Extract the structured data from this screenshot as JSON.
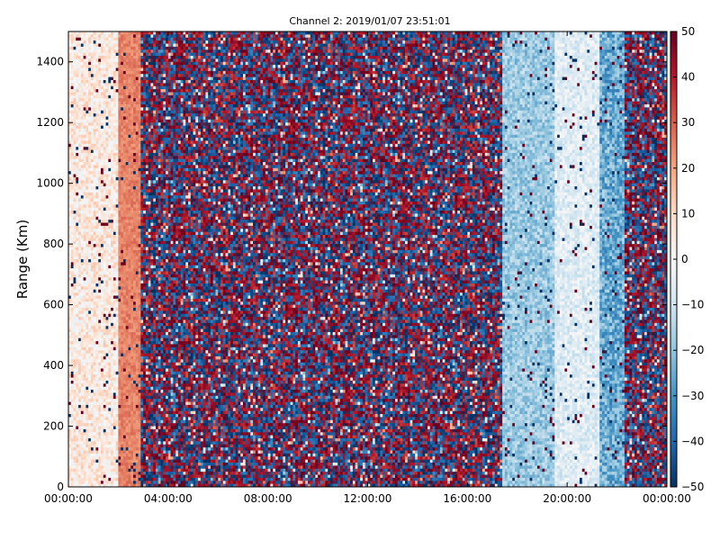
{
  "chart_data": {
    "type": "heatmap",
    "title": "Channel 2: 2019/01/07 23:51:01",
    "xlabel": "",
    "ylabel": "Range (Km)",
    "x_ticks": [
      "00:00:00",
      "04:00:00",
      "08:00:00",
      "12:00:00",
      "16:00:00",
      "20:00:00",
      "00:00:00"
    ],
    "x_range_hours": [
      0,
      24
    ],
    "y_ticks": [
      0,
      200,
      400,
      600,
      800,
      1000,
      1200,
      1400
    ],
    "ylim": [
      0,
      1500
    ],
    "colorbar": {
      "colormap": "RdBu_r",
      "range": [
        -50,
        50
      ],
      "ticks": [
        50,
        40,
        30,
        20,
        10,
        0,
        -10,
        -20,
        -30,
        -40,
        -50
      ],
      "low_color": "#053061",
      "mid_color": "#f7f7f7",
      "high_color": "#67001f"
    },
    "column_profile": {
      "description_hours_to_mean_value": [
        {
          "from": 0.0,
          "to": 2.0,
          "mean": 5,
          "spread": 18
        },
        {
          "from": 2.0,
          "to": 2.9,
          "mean": 25,
          "spread": 8
        },
        {
          "from": 2.9,
          "to": 16.0,
          "mean": 0,
          "spread": 55
        },
        {
          "from": 16.0,
          "to": 17.4,
          "mean": -10,
          "spread": 45
        },
        {
          "from": 17.4,
          "to": 19.5,
          "mean": -18,
          "spread": 16
        },
        {
          "from": 19.5,
          "to": 21.3,
          "mean": -6,
          "spread": 14
        },
        {
          "from": 21.3,
          "to": 22.3,
          "mean": -25,
          "spread": 22
        },
        {
          "from": 22.3,
          "to": 24.0,
          "mean": 0,
          "spread": 55
        }
      ]
    }
  }
}
